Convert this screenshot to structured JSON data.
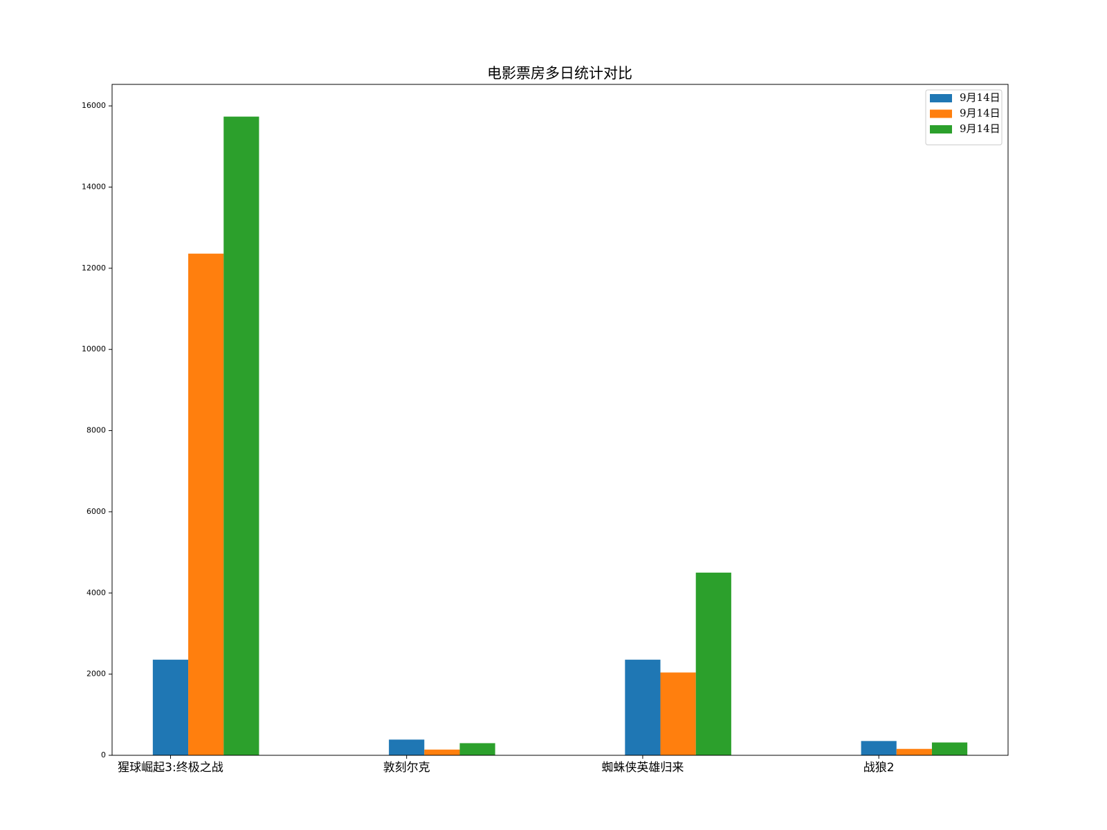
{
  "chart_data": {
    "type": "bar",
    "title": "电影票房多日统计对比",
    "categories": [
      "猩球崛起3:终极之战",
      "敦刻尔克",
      "蜘蛛侠英雄归来",
      "战狼2"
    ],
    "series": [
      {
        "name": "9月14日",
        "color": "#1f77b4",
        "values": [
          2356,
          387,
          2356,
          352
        ]
      },
      {
        "name": "9月14日",
        "color": "#ff7f0e",
        "values": [
          12360,
          141,
          2040,
          158
        ]
      },
      {
        "name": "9月14日",
        "color": "#2ca02c",
        "values": [
          15736,
          299,
          4501,
          316
        ]
      }
    ],
    "ylim": [
      0,
      16530
    ],
    "yticks": [
      0,
      2000,
      4000,
      6000,
      8000,
      10000,
      12000,
      14000,
      16000
    ],
    "grid": false,
    "legend": "upper right"
  }
}
